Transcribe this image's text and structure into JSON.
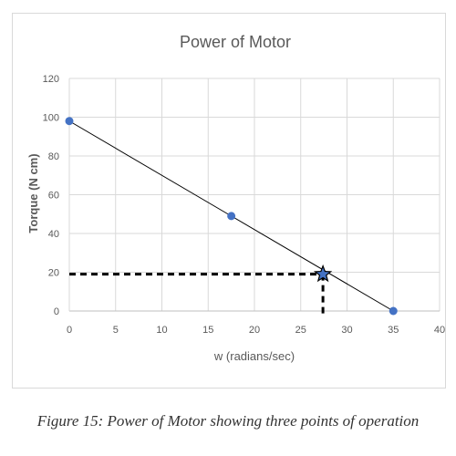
{
  "chart_data": {
    "type": "scatter",
    "title": "Power of Motor",
    "xlabel": "w (radians/sec)",
    "ylabel": "Torque (N cm)",
    "xlim": [
      0,
      40
    ],
    "ylim": [
      0,
      120
    ],
    "x_ticks": [
      0,
      5,
      10,
      15,
      20,
      25,
      30,
      35,
      40
    ],
    "y_ticks": [
      0,
      20,
      40,
      60,
      80,
      100,
      120
    ],
    "grid": true,
    "series": [
      {
        "points": [
          {
            "x": 0,
            "y": 98
          },
          {
            "x": 17.5,
            "y": 49
          },
          {
            "x": 35,
            "y": 0
          }
        ],
        "color": "#4472c4",
        "line_color": "#000000"
      }
    ],
    "operating_point": {
      "x": 27.4,
      "y": 19,
      "marker": "star-icon",
      "color": "#4472c4"
    },
    "guide_lines": {
      "style": "dashed",
      "color": "#000000"
    }
  },
  "caption": "Figure 15: Power of Motor showing three points of operation"
}
